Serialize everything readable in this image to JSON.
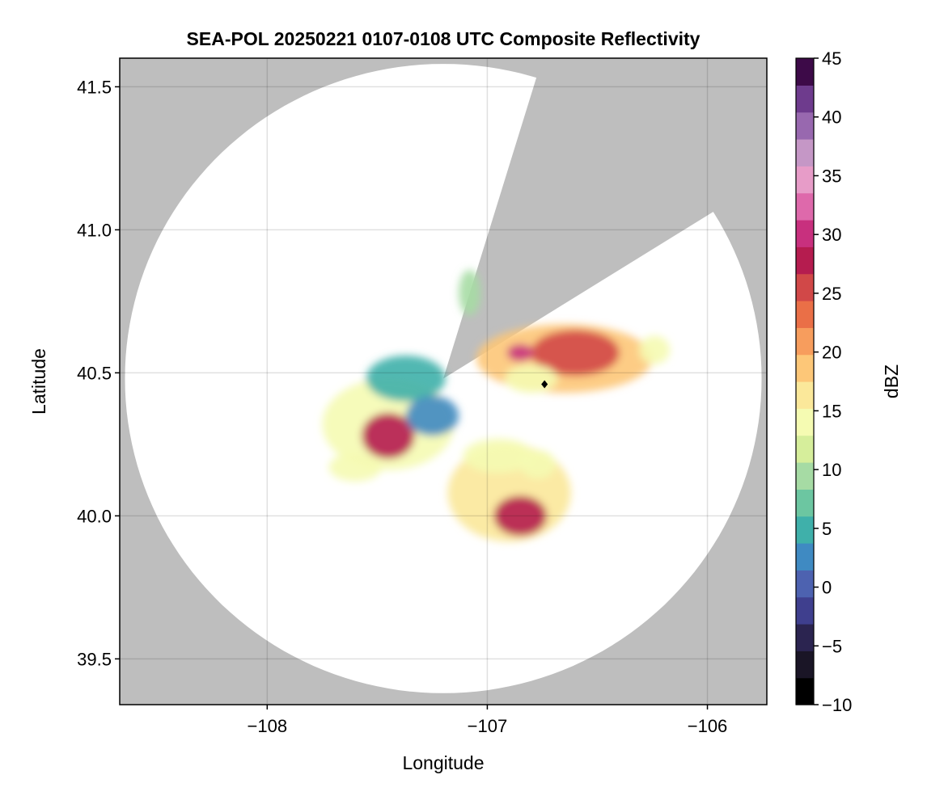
{
  "chart_data": {
    "type": "heatmap",
    "title": "SEA-POL 20250221 0107-0108 UTC Composite Reflectivity",
    "xlabel": "Longitude",
    "ylabel": "Latitude",
    "xlim": [
      -108.67,
      -105.73
    ],
    "ylim": [
      39.34,
      41.6
    ],
    "x_ticks": [
      -108,
      -107,
      -106
    ],
    "x_tick_labels": [
      "−108",
      "−107",
      "−106"
    ],
    "y_ticks": [
      39.5,
      40.0,
      40.5,
      41.0,
      41.5
    ],
    "y_tick_labels": [
      "39.5",
      "40.0",
      "40.5",
      "41.0",
      "41.5"
    ],
    "grid": true,
    "background_color": "#bebebe",
    "radar_site": {
      "lon": -107.2,
      "lat": 40.48
    },
    "max_range_deg": 1.1,
    "blocked_sector": {
      "from_bearing_deg": 17,
      "to_bearing_deg": 58
    },
    "marker": {
      "lon": -106.74,
      "lat": 40.46,
      "shape": "diamond",
      "color": "#000000"
    },
    "colorbar": {
      "label": "dBZ",
      "range": [
        -10,
        45
      ],
      "ticks": [
        -10,
        -5,
        0,
        5,
        10,
        15,
        20,
        25,
        30,
        35,
        40,
        45
      ],
      "tick_labels": [
        "−10",
        "−5",
        "0",
        "5",
        "10",
        "15",
        "20",
        "25",
        "30",
        "35",
        "40",
        "45"
      ],
      "colors": [
        "#000000",
        "#1a1526",
        "#2b2450",
        "#3f3f8e",
        "#4d62b0",
        "#3f8ac2",
        "#3fb0aa",
        "#6cc6a1",
        "#a6dba4",
        "#d6ee9b",
        "#f5fbb2",
        "#fbe89a",
        "#fdc778",
        "#f79d5d",
        "#ea6f47",
        "#d14848",
        "#b51c4f",
        "#c8307e",
        "#de69ab",
        "#e79cc8",
        "#c597c6",
        "#9868af",
        "#6e3b8d",
        "#3d0a48"
      ],
      "position": "right"
    },
    "echo_cells": [
      {
        "lon": -107.45,
        "lat": 40.32,
        "r_lon": 0.3,
        "r_lat": 0.16,
        "dbz": 13
      },
      {
        "lon": -107.45,
        "lat": 40.28,
        "r_lon": 0.12,
        "r_lat": 0.08,
        "dbz": 28
      },
      {
        "lon": -107.37,
        "lat": 40.48,
        "r_lon": 0.18,
        "r_lat": 0.08,
        "dbz": 6
      },
      {
        "lon": -107.6,
        "lat": 40.17,
        "r_lon": 0.12,
        "r_lat": 0.05,
        "dbz": 13
      },
      {
        "lon": -107.25,
        "lat": 40.35,
        "r_lon": 0.12,
        "r_lat": 0.07,
        "dbz": 2
      },
      {
        "lon": -106.9,
        "lat": 40.08,
        "r_lon": 0.28,
        "r_lat": 0.17,
        "dbz": 16
      },
      {
        "lon": -106.85,
        "lat": 40.0,
        "r_lon": 0.12,
        "r_lat": 0.07,
        "dbz": 27
      },
      {
        "lon": -106.95,
        "lat": 40.21,
        "r_lon": 0.16,
        "r_lat": 0.06,
        "dbz": 14
      },
      {
        "lon": -106.65,
        "lat": 40.55,
        "r_lon": 0.4,
        "r_lat": 0.12,
        "dbz": 18
      },
      {
        "lon": -106.6,
        "lat": 40.57,
        "r_lon": 0.2,
        "r_lat": 0.08,
        "dbz": 26
      },
      {
        "lon": -106.85,
        "lat": 40.57,
        "r_lon": 0.06,
        "r_lat": 0.03,
        "dbz": 31
      },
      {
        "lon": -106.8,
        "lat": 40.48,
        "r_lon": 0.12,
        "r_lat": 0.05,
        "dbz": 15
      },
      {
        "lon": -106.24,
        "lat": 40.58,
        "r_lon": 0.07,
        "r_lat": 0.05,
        "dbz": 15
      },
      {
        "lon": -107.08,
        "lat": 40.78,
        "r_lon": 0.05,
        "r_lat": 0.08,
        "dbz": 10
      },
      {
        "lon": -106.77,
        "lat": 40.18,
        "r_lon": 0.08,
        "r_lat": 0.05,
        "dbz": 13
      }
    ]
  }
}
